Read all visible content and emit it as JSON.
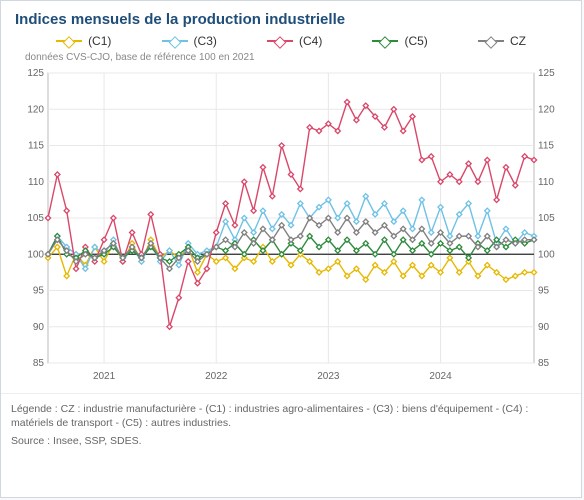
{
  "title": "Indices mensuels de la production industrielle",
  "subtitle": "données CVS-CJO, base de référence 100 en 2021",
  "footer_legend": "Légende : CZ : industrie manufacturière - (C1) : industries agro-alimentaires - (C3) : biens d'équipement - (C4) : matériels de transport - (C5) : autres industries.",
  "footer_source": "Source : Insee, SSP, SDES.",
  "chart": {
    "type": "line",
    "background_color": "#ffffff",
    "grid_color": "#e8e8e8",
    "baseline_y": 100,
    "baseline_color": "#2a2a2a",
    "ylim": [
      85,
      125
    ],
    "ytick_step": 5,
    "x_start": "2020-07",
    "x_month_count": 53,
    "x_year_ticks": [
      "2021",
      "2022",
      "2023",
      "2024"
    ],
    "x_year_tick_positions_month": [
      6,
      18,
      30,
      42
    ],
    "marker_size": 2.6,
    "line_width": 1.4,
    "title_fontsize": 15,
    "title_color": "#1f4e79",
    "axis_label_fontsize": 10,
    "legend_fontsize": 12,
    "series": [
      {
        "key": "C1",
        "label": "(C1)",
        "color": "#e6b800",
        "values": [
          99.5,
          101,
          97,
          100,
          98.5,
          101,
          99,
          101.5,
          99,
          101.5,
          99,
          102,
          99.5,
          100.5,
          99.5,
          101,
          97.5,
          100,
          99,
          99.5,
          98,
          99.5,
          99,
          101,
          99,
          100,
          98.5,
          100,
          99,
          97.5,
          98,
          99,
          97,
          98,
          96.5,
          98.5,
          97.5,
          99,
          97,
          98.5,
          97,
          98.5,
          97.5,
          99.5,
          97.5,
          99,
          97,
          98.5,
          97.5,
          96.5,
          97,
          97.5,
          97.5
        ]
      },
      {
        "key": "C3",
        "label": "(C3)",
        "color": "#6fc2e6",
        "values": [
          100,
          102.5,
          101,
          100,
          98,
          101,
          100,
          102,
          99,
          101,
          99,
          101.5,
          99,
          100.5,
          98.5,
          101.5,
          100,
          100.5,
          101,
          104.5,
          102,
          105,
          103,
          106,
          103.5,
          105.5,
          104,
          107,
          105,
          106.5,
          107.5,
          105,
          107,
          104.5,
          108,
          105.5,
          107,
          104.5,
          106,
          103.5,
          107.5,
          103,
          106.5,
          102.5,
          105.5,
          107,
          102.5,
          106,
          101.5,
          103.5,
          101.5,
          103,
          102.5
        ]
      },
      {
        "key": "C4",
        "label": "(C4)",
        "color": "#d9476a",
        "values": [
          105,
          111,
          106,
          98,
          101,
          99,
          102,
          105,
          99,
          103,
          100,
          105.5,
          100,
          90,
          94,
          99,
          96,
          98,
          103,
          107,
          104,
          110,
          106,
          112,
          108,
          115,
          111,
          109,
          117.5,
          117,
          118,
          117,
          121,
          118.5,
          120.5,
          119,
          117.5,
          120,
          117,
          119,
          113,
          113.5,
          110,
          111,
          110,
          112.5,
          110,
          113,
          107.5,
          112,
          109.5,
          113.5,
          113
        ]
      },
      {
        "key": "C5",
        "label": "(C5)",
        "color": "#2e8b3d",
        "values": [
          100,
          102.5,
          100,
          99.5,
          100.5,
          99.5,
          100,
          101,
          99.5,
          100.5,
          99.5,
          101,
          99.5,
          99,
          100,
          101,
          99.5,
          100,
          101,
          100.5,
          101.5,
          100,
          102,
          100.5,
          102,
          100,
          101.5,
          100.5,
          102.5,
          101,
          102,
          100.5,
          102,
          100.5,
          101.5,
          100,
          102,
          100,
          102,
          100.5,
          101.5,
          100,
          101.5,
          100.5,
          101,
          99.5,
          101.5,
          100.5,
          102,
          101,
          102,
          101.5,
          102
        ]
      },
      {
        "key": "CZ",
        "label": "CZ",
        "color": "#808080",
        "values": [
          100,
          102,
          100.5,
          99,
          100,
          99.5,
          100.5,
          101.5,
          99.5,
          101,
          99.5,
          101.5,
          99.5,
          98,
          99.5,
          100.5,
          99,
          100,
          101,
          102,
          101,
          103,
          101.5,
          103.5,
          102,
          104,
          102,
          102.5,
          105,
          104,
          105,
          103,
          105,
          103,
          104.5,
          103,
          104,
          102.5,
          103.5,
          102,
          103.5,
          101.5,
          103,
          101.5,
          102.5,
          102.5,
          101,
          102.5,
          101,
          102,
          101.5,
          102,
          102
        ]
      }
    ]
  }
}
